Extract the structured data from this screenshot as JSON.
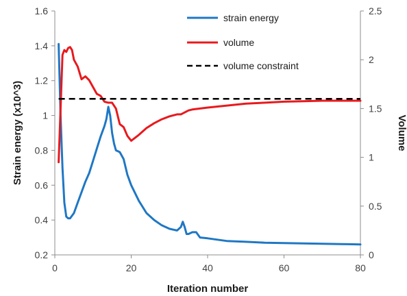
{
  "chart_data": {
    "type": "line",
    "title": "",
    "xlabel": "Iteration number",
    "ylabel": "Strain energy (x10^3)",
    "y2label": "Volume",
    "xlim": [
      0,
      80
    ],
    "ylim": [
      0.2,
      1.6
    ],
    "y2lim": [
      0,
      2.5
    ],
    "x_ticks": [
      0,
      20,
      40,
      60,
      80
    ],
    "x_tick_labels": [
      "0",
      "20",
      "40",
      "60",
      "80"
    ],
    "y_ticks": [
      0.2,
      0.4,
      0.6,
      0.8,
      1.0,
      1.2,
      1.4,
      1.6
    ],
    "y_tick_labels": [
      "0.2",
      "0.4",
      "0.6",
      "0.8",
      "1",
      "1.2",
      "1.4",
      "1.6"
    ],
    "y2_ticks": [
      0,
      0.5,
      1.0,
      1.5,
      2.0,
      2.5
    ],
    "y2_tick_labels": [
      "0",
      "0.5",
      "1",
      "1.5",
      "2",
      "2.5"
    ],
    "grid": false,
    "legend_position": "top-right",
    "series": [
      {
        "name": "strain energy",
        "axis": "left",
        "color": "#1f77c4",
        "style": "solid",
        "x": [
          1,
          1.5,
          2,
          2.5,
          3,
          3.5,
          4,
          5,
          6,
          7,
          8,
          9,
          10,
          11,
          12,
          13,
          13.5,
          14,
          14.5,
          15,
          15.5,
          16,
          17,
          18,
          19,
          20,
          22,
          24,
          26,
          28,
          30,
          32,
          33,
          33.5,
          34,
          34.5,
          35,
          36,
          37,
          38,
          40,
          45,
          50,
          55,
          60,
          65,
          70,
          75,
          80
        ],
        "values": [
          1.41,
          1.0,
          0.7,
          0.5,
          0.42,
          0.41,
          0.41,
          0.44,
          0.5,
          0.56,
          0.62,
          0.67,
          0.74,
          0.81,
          0.88,
          0.94,
          0.98,
          1.05,
          1.0,
          0.9,
          0.84,
          0.8,
          0.79,
          0.75,
          0.66,
          0.6,
          0.51,
          0.44,
          0.4,
          0.37,
          0.35,
          0.34,
          0.36,
          0.39,
          0.36,
          0.32,
          0.32,
          0.33,
          0.33,
          0.3,
          0.295,
          0.28,
          0.275,
          0.27,
          0.268,
          0.266,
          0.264,
          0.262,
          0.26
        ]
      },
      {
        "name": "volume",
        "axis": "right",
        "color": "#e8191d",
        "style": "solid",
        "x": [
          1,
          1.5,
          2,
          2.5,
          3,
          3.5,
          4,
          4.5,
          5,
          6,
          7,
          8,
          9,
          10,
          11,
          12,
          13,
          14,
          15,
          16,
          17,
          18,
          19,
          20,
          22,
          24,
          26,
          28,
          30,
          32,
          33,
          34,
          35,
          36,
          38,
          40,
          45,
          50,
          55,
          60,
          65,
          70,
          75,
          80
        ],
        "values": [
          0.95,
          1.5,
          2.05,
          2.1,
          2.08,
          2.12,
          2.13,
          2.1,
          2.0,
          1.93,
          1.8,
          1.83,
          1.79,
          1.72,
          1.65,
          1.63,
          1.57,
          1.56,
          1.56,
          1.5,
          1.34,
          1.31,
          1.22,
          1.17,
          1.23,
          1.3,
          1.35,
          1.39,
          1.42,
          1.44,
          1.44,
          1.46,
          1.48,
          1.49,
          1.5,
          1.51,
          1.53,
          1.55,
          1.56,
          1.57,
          1.575,
          1.58,
          1.58,
          1.58
        ]
      },
      {
        "name": "volume constraint",
        "axis": "right",
        "color": "#000000",
        "style": "dashed",
        "x": [
          1,
          80
        ],
        "values": [
          1.6,
          1.6
        ]
      }
    ]
  }
}
